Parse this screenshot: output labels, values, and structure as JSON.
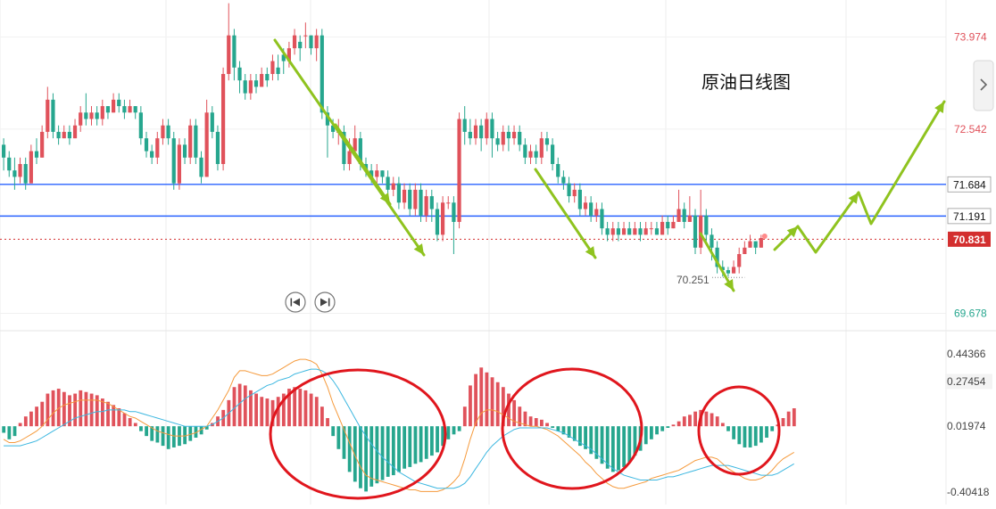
{
  "chart_data": {
    "type": "candlestick",
    "title": "原油日线图",
    "price_axis": {
      "ticks": [
        "73.974",
        "72.542",
        "69.678"
      ],
      "range": [
        69.45,
        74.55
      ],
      "markers": [
        {
          "label": "71.684",
          "value": 71.684,
          "color": "#2962ff"
        },
        {
          "label": "71.191",
          "value": 71.191,
          "color": "#2962ff"
        },
        {
          "label": "70.831",
          "value": 70.831,
          "color": "#d32f2f",
          "current": true
        }
      ]
    },
    "low_annotation": {
      "label": "70.251",
      "value": 70.251,
      "candle_index": 135
    },
    "up_color": "#e0525b",
    "down_color": "#26a68e",
    "candles": [
      [
        72.3,
        72.1,
        72.4,
        71.9
      ],
      [
        72.1,
        71.9,
        72.2,
        71.8
      ],
      [
        71.9,
        71.8,
        72.1,
        71.6
      ],
      [
        71.8,
        72.0,
        72.1,
        71.7
      ],
      [
        72.0,
        71.7,
        72.1,
        71.6
      ],
      [
        71.7,
        72.2,
        72.3,
        71.7
      ],
      [
        72.2,
        72.1,
        72.4,
        72.0
      ],
      [
        72.1,
        72.5,
        72.6,
        72.1
      ],
      [
        72.5,
        73.0,
        73.2,
        72.4
      ],
      [
        73.0,
        72.5,
        73.1,
        72.4
      ],
      [
        72.5,
        72.4,
        72.6,
        72.3
      ],
      [
        72.4,
        72.5,
        72.6,
        72.4
      ],
      [
        72.5,
        72.4,
        72.6,
        72.3
      ],
      [
        72.4,
        72.6,
        72.7,
        72.4
      ],
      [
        72.6,
        72.8,
        72.9,
        72.5
      ],
      [
        72.8,
        72.7,
        73.1,
        72.6
      ],
      [
        72.7,
        72.8,
        72.9,
        72.6
      ],
      [
        72.8,
        72.7,
        72.9,
        72.6
      ],
      [
        72.7,
        72.9,
        73.0,
        72.6
      ],
      [
        72.9,
        72.8,
        72.9,
        72.7
      ],
      [
        72.8,
        73.0,
        73.1,
        72.8
      ],
      [
        73.0,
        72.9,
        73.1,
        72.8
      ],
      [
        72.9,
        72.8,
        73.0,
        72.7
      ],
      [
        72.8,
        72.9,
        73.0,
        72.8
      ],
      [
        72.9,
        72.8,
        72.9,
        72.7
      ],
      [
        72.8,
        72.4,
        72.9,
        72.3
      ],
      [
        72.4,
        72.2,
        72.5,
        72.1
      ],
      [
        72.2,
        72.1,
        72.3,
        72.0
      ],
      [
        72.1,
        72.4,
        72.5,
        72.0
      ],
      [
        72.4,
        72.6,
        72.7,
        72.3
      ],
      [
        72.6,
        72.4,
        72.7,
        72.3
      ],
      [
        72.4,
        71.7,
        72.5,
        71.6
      ],
      [
        71.7,
        72.3,
        72.4,
        71.6
      ],
      [
        72.3,
        72.1,
        72.4,
        72.0
      ],
      [
        72.1,
        72.6,
        72.7,
        72.0
      ],
      [
        72.6,
        72.1,
        72.7,
        72.0
      ],
      [
        72.1,
        71.8,
        72.2,
        71.7
      ],
      [
        71.8,
        72.8,
        73.0,
        71.8
      ],
      [
        72.8,
        72.5,
        72.9,
        72.4
      ],
      [
        72.5,
        72.0,
        72.6,
        71.9
      ],
      [
        72.0,
        73.4,
        73.5,
        71.9
      ],
      [
        73.4,
        74.0,
        74.5,
        73.3
      ],
      [
        74.0,
        73.5,
        74.1,
        73.3
      ],
      [
        73.5,
        73.3,
        73.6,
        73.1
      ],
      [
        73.3,
        73.1,
        73.4,
        73.0
      ],
      [
        73.1,
        73.3,
        73.4,
        73.0
      ],
      [
        73.3,
        73.2,
        73.4,
        73.1
      ],
      [
        73.2,
        73.4,
        73.5,
        73.2
      ],
      [
        73.4,
        73.3,
        73.5,
        73.2
      ],
      [
        73.4,
        73.6,
        73.7,
        73.3
      ],
      [
        73.5,
        73.4,
        73.7,
        73.3
      ],
      [
        73.7,
        73.6,
        73.8,
        73.4
      ],
      [
        73.6,
        73.8,
        73.9,
        73.5
      ],
      [
        73.8,
        74.0,
        74.1,
        73.7
      ],
      [
        73.9,
        73.8,
        74.0,
        73.6
      ],
      [
        74.0,
        74.0,
        74.2,
        73.8
      ],
      [
        74.0,
        73.8,
        74.0,
        73.7
      ],
      [
        73.8,
        74.0,
        74.1,
        73.6
      ],
      [
        74.0,
        72.8,
        74.1,
        72.7
      ],
      [
        72.8,
        72.6,
        72.9,
        72.1
      ],
      [
        72.6,
        72.5,
        72.7,
        72.4
      ],
      [
        72.5,
        72.5,
        72.7,
        72.3
      ],
      [
        72.5,
        72.0,
        72.6,
        71.9
      ],
      [
        72.0,
        72.2,
        72.4,
        71.9
      ],
      [
        72.2,
        72.4,
        72.6,
        72.1
      ],
      [
        72.4,
        72.0,
        72.5,
        71.9
      ],
      [
        72.0,
        71.9,
        72.1,
        71.8
      ],
      [
        71.9,
        71.8,
        72.0,
        71.7
      ],
      [
        71.8,
        71.9,
        72.0,
        71.7
      ],
      [
        71.9,
        71.8,
        71.9,
        71.7
      ],
      [
        71.8,
        71.6,
        71.9,
        71.5
      ],
      [
        71.6,
        71.7,
        71.8,
        71.5
      ],
      [
        71.7,
        71.4,
        71.8,
        71.3
      ],
      [
        71.4,
        71.6,
        71.7,
        71.3
      ],
      [
        71.6,
        71.3,
        71.7,
        71.2
      ],
      [
        71.3,
        71.6,
        71.7,
        71.2
      ],
      [
        71.6,
        71.2,
        71.7,
        71.1
      ],
      [
        71.2,
        71.5,
        71.6,
        71.1
      ],
      [
        71.5,
        71.3,
        71.6,
        71.1
      ],
      [
        71.3,
        70.9,
        71.4,
        70.8
      ],
      [
        70.9,
        71.4,
        71.5,
        70.8
      ],
      [
        71.4,
        71.4,
        71.5,
        71.3
      ],
      [
        71.4,
        71.1,
        71.5,
        70.6
      ],
      [
        71.1,
        72.7,
        72.8,
        71.0
      ],
      [
        72.7,
        72.5,
        72.9,
        72.3
      ],
      [
        72.5,
        72.4,
        72.7,
        72.3
      ],
      [
        72.4,
        72.6,
        72.7,
        72.3
      ],
      [
        72.6,
        72.4,
        72.7,
        72.2
      ],
      [
        72.4,
        72.7,
        72.8,
        72.3
      ],
      [
        72.7,
        72.4,
        72.8,
        72.1
      ],
      [
        72.4,
        72.3,
        72.5,
        72.2
      ],
      [
        72.3,
        72.5,
        72.6,
        72.2
      ],
      [
        72.5,
        72.4,
        72.6,
        72.2
      ],
      [
        72.4,
        72.5,
        72.6,
        72.3
      ],
      [
        72.5,
        72.3,
        72.6,
        72.2
      ],
      [
        72.3,
        72.1,
        72.4,
        72.0
      ],
      [
        72.1,
        72.2,
        72.3,
        72.0
      ],
      [
        72.2,
        72.1,
        72.3,
        72.0
      ],
      [
        72.1,
        72.4,
        72.5,
        72.0
      ],
      [
        72.4,
        72.3,
        72.5,
        72.2
      ],
      [
        72.3,
        72.0,
        72.4,
        71.9
      ],
      [
        72.0,
        71.8,
        72.1,
        71.7
      ],
      [
        71.8,
        71.7,
        71.9,
        71.6
      ],
      [
        71.7,
        71.5,
        71.8,
        71.4
      ],
      [
        71.5,
        71.6,
        71.7,
        71.4
      ],
      [
        71.6,
        71.3,
        71.7,
        71.2
      ],
      [
        71.3,
        71.4,
        71.5,
        71.2
      ],
      [
        71.4,
        71.2,
        71.5,
        71.1
      ],
      [
        71.2,
        71.3,
        71.4,
        71.1
      ],
      [
        71.3,
        71.0,
        71.4,
        70.9
      ],
      [
        71.0,
        70.9,
        71.1,
        70.8
      ],
      [
        70.9,
        71.0,
        71.1,
        70.8
      ],
      [
        71.0,
        70.9,
        71.1,
        70.8
      ],
      [
        70.9,
        71.0,
        71.1,
        70.9
      ],
      [
        71.0,
        70.9,
        71.1,
        70.9
      ],
      [
        70.9,
        71.0,
        71.1,
        70.9
      ],
      [
        71.0,
        70.9,
        71.1,
        70.8
      ],
      [
        70.9,
        71.0,
        71.1,
        70.9
      ],
      [
        71.0,
        71.0,
        71.1,
        70.9
      ],
      [
        71.0,
        70.9,
        71.1,
        70.9
      ],
      [
        70.9,
        71.1,
        71.2,
        70.9
      ],
      [
        71.1,
        71.0,
        71.2,
        70.9
      ],
      [
        71.0,
        71.1,
        71.2,
        71.0
      ],
      [
        71.1,
        71.3,
        71.6,
        71.1
      ],
      [
        71.3,
        71.1,
        71.4,
        71.0
      ],
      [
        71.1,
        71.2,
        71.5,
        71.1
      ],
      [
        71.2,
        70.7,
        71.3,
        70.6
      ],
      [
        70.7,
        71.2,
        71.6,
        70.6
      ],
      [
        71.2,
        70.9,
        71.3,
        70.8
      ],
      [
        70.9,
        70.7,
        71.0,
        70.5
      ],
      [
        70.7,
        70.4,
        70.8,
        70.3
      ],
      [
        70.4,
        70.35,
        70.5,
        70.25
      ],
      [
        70.35,
        70.3,
        70.4,
        70.25
      ],
      [
        70.3,
        70.4,
        70.5,
        70.3
      ],
      [
        70.4,
        70.6,
        70.7,
        70.3
      ],
      [
        70.6,
        70.7,
        70.8,
        70.6
      ],
      [
        70.7,
        70.8,
        70.9,
        70.7
      ],
      [
        70.8,
        70.7,
        70.8,
        70.6
      ],
      [
        70.7,
        70.85,
        70.9,
        70.7
      ]
    ],
    "macd": {
      "axis_ticks": [
        "0.44366",
        "0.27454",
        "0.01974",
        "-0.40418"
      ],
      "range": [
        -0.48,
        0.52
      ],
      "zero": 0.01974,
      "histogram": [
        -0.04,
        -0.08,
        -0.06,
        0.02,
        0.06,
        0.09,
        0.12,
        0.15,
        0.2,
        0.22,
        0.23,
        0.21,
        0.19,
        0.2,
        0.22,
        0.21,
        0.2,
        0.19,
        0.17,
        0.15,
        0.13,
        0.11,
        0.08,
        0.05,
        0.02,
        -0.03,
        -0.06,
        -0.09,
        -0.1,
        -0.12,
        -0.14,
        -0.13,
        -0.12,
        -0.11,
        -0.09,
        -0.07,
        -0.05,
        -0.02,
        0.02,
        0.06,
        0.1,
        0.16,
        0.24,
        0.26,
        0.25,
        0.22,
        0.2,
        0.18,
        0.17,
        0.16,
        0.18,
        0.2,
        0.23,
        0.24,
        0.23,
        0.22,
        0.2,
        0.18,
        0.12,
        0.05,
        -0.06,
        -0.14,
        -0.2,
        -0.28,
        -0.34,
        -0.38,
        -0.4,
        -0.37,
        -0.35,
        -0.33,
        -0.31,
        -0.3,
        -0.28,
        -0.26,
        -0.25,
        -0.23,
        -0.22,
        -0.2,
        -0.18,
        -0.16,
        -0.12,
        -0.08,
        -0.05,
        -0.03,
        0.12,
        0.25,
        0.32,
        0.36,
        0.33,
        0.3,
        0.27,
        0.24,
        0.2,
        0.16,
        0.12,
        0.09,
        0.06,
        0.05,
        0.04,
        0.02,
        -0.01,
        -0.03,
        -0.05,
        -0.07,
        -0.09,
        -0.12,
        -0.14,
        -0.17,
        -0.2,
        -0.23,
        -0.26,
        -0.28,
        -0.27,
        -0.25,
        -0.22,
        -0.18,
        -0.15,
        -0.11,
        -0.08,
        -0.05,
        -0.03,
        -0.01,
        0.01,
        0.03,
        0.06,
        0.07,
        0.09,
        0.1,
        0.09,
        0.08,
        0.06,
        0.02,
        -0.03,
        -0.08,
        -0.11,
        -0.13,
        -0.13,
        -0.12,
        -0.1,
        -0.07,
        -0.03,
        0.01,
        0.05,
        0.09,
        0.11
      ],
      "dif": [
        -0.08,
        -0.1,
        -0.1,
        -0.09,
        -0.07,
        -0.05,
        -0.03,
        0.0,
        0.04,
        0.08,
        0.11,
        0.13,
        0.14,
        0.15,
        0.16,
        0.16,
        0.16,
        0.16,
        0.15,
        0.14,
        0.12,
        0.1,
        0.08,
        0.06,
        0.05,
        0.03,
        0.01,
        -0.01,
        -0.03,
        -0.04,
        -0.05,
        -0.06,
        -0.06,
        -0.06,
        -0.05,
        -0.04,
        -0.02,
        0.0,
        0.05,
        0.1,
        0.16,
        0.22,
        0.3,
        0.34,
        0.34,
        0.33,
        0.32,
        0.31,
        0.31,
        0.32,
        0.34,
        0.36,
        0.38,
        0.4,
        0.41,
        0.41,
        0.4,
        0.38,
        0.32,
        0.24,
        0.14,
        0.06,
        -0.02,
        -0.1,
        -0.18,
        -0.25,
        -0.3,
        -0.32,
        -0.33,
        -0.34,
        -0.35,
        -0.36,
        -0.37,
        -0.38,
        -0.39,
        -0.39,
        -0.4,
        -0.4,
        -0.4,
        -0.4,
        -0.39,
        -0.37,
        -0.34,
        -0.3,
        -0.2,
        -0.08,
        0.02,
        0.08,
        0.1,
        0.1,
        0.09,
        0.07,
        0.05,
        0.03,
        0.02,
        0.01,
        0.0,
        0.0,
        -0.01,
        -0.02,
        -0.04,
        -0.06,
        -0.09,
        -0.12,
        -0.15,
        -0.18,
        -0.22,
        -0.25,
        -0.29,
        -0.32,
        -0.35,
        -0.37,
        -0.38,
        -0.38,
        -0.37,
        -0.36,
        -0.35,
        -0.34,
        -0.32,
        -0.31,
        -0.3,
        -0.29,
        -0.28,
        -0.27,
        -0.25,
        -0.23,
        -0.21,
        -0.2,
        -0.19,
        -0.19,
        -0.2,
        -0.23,
        -0.26,
        -0.28,
        -0.3,
        -0.32,
        -0.33,
        -0.33,
        -0.32,
        -0.3,
        -0.27,
        -0.23,
        -0.2,
        -0.18,
        -0.16
      ],
      "dea": [
        -0.12,
        -0.12,
        -0.12,
        -0.12,
        -0.11,
        -0.1,
        -0.09,
        -0.07,
        -0.05,
        -0.03,
        -0.01,
        0.01,
        0.03,
        0.05,
        0.06,
        0.07,
        0.08,
        0.09,
        0.09,
        0.1,
        0.1,
        0.1,
        0.1,
        0.09,
        0.09,
        0.08,
        0.07,
        0.06,
        0.05,
        0.04,
        0.03,
        0.02,
        0.01,
        0.0,
        0.0,
        0.0,
        0.0,
        0.0,
        0.01,
        0.03,
        0.05,
        0.08,
        0.11,
        0.14,
        0.17,
        0.19,
        0.21,
        0.23,
        0.25,
        0.26,
        0.28,
        0.29,
        0.3,
        0.32,
        0.33,
        0.34,
        0.35,
        0.35,
        0.34,
        0.32,
        0.28,
        0.23,
        0.17,
        0.11,
        0.05,
        -0.01,
        -0.06,
        -0.11,
        -0.15,
        -0.19,
        -0.22,
        -0.25,
        -0.28,
        -0.3,
        -0.32,
        -0.34,
        -0.35,
        -0.36,
        -0.37,
        -0.38,
        -0.38,
        -0.38,
        -0.38,
        -0.37,
        -0.35,
        -0.31,
        -0.26,
        -0.21,
        -0.16,
        -0.12,
        -0.09,
        -0.06,
        -0.04,
        -0.02,
        -0.01,
        -0.01,
        -0.01,
        -0.01,
        -0.01,
        -0.01,
        -0.02,
        -0.03,
        -0.04,
        -0.06,
        -0.08,
        -0.1,
        -0.12,
        -0.14,
        -0.17,
        -0.2,
        -0.23,
        -0.26,
        -0.28,
        -0.3,
        -0.31,
        -0.32,
        -0.33,
        -0.33,
        -0.33,
        -0.33,
        -0.32,
        -0.31,
        -0.31,
        -0.3,
        -0.29,
        -0.28,
        -0.27,
        -0.26,
        -0.25,
        -0.24,
        -0.24,
        -0.24,
        -0.24,
        -0.25,
        -0.26,
        -0.27,
        -0.28,
        -0.29,
        -0.3,
        -0.3,
        -0.3,
        -0.29,
        -0.27,
        -0.25,
        -0.23
      ]
    },
    "dif_color": "#f59a3c",
    "dea_color": "#3cb7e0",
    "trend_arrow_color": "#8fc31f",
    "highlight_circle_color": "#e0161d"
  },
  "nav": {
    "prev_icon": "skip-back-icon",
    "next_icon": "skip-forward-icon",
    "expand_icon": "chevron-right-icon"
  }
}
